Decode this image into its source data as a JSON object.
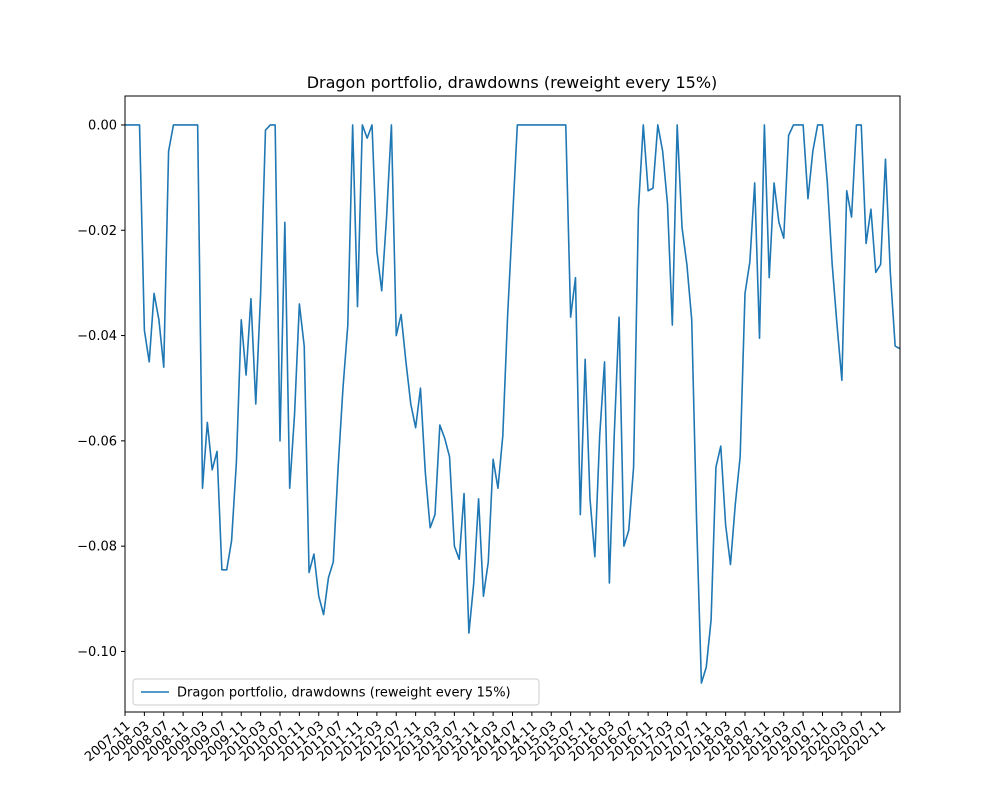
{
  "chart_data": {
    "type": "line",
    "title": "Dragon portfolio, drawdowns (reweight every 15%)",
    "xlabel": "",
    "ylabel": "",
    "ylim": [
      -0.1115,
      0.0055
    ],
    "y_ticks": [
      0.0,
      -0.02,
      -0.04,
      -0.06,
      -0.08,
      -0.1
    ],
    "y_tick_labels": [
      "0.00",
      "−0.02",
      "−0.04",
      "−0.06",
      "−0.08",
      "−0.10"
    ],
    "x_tick_labels": [
      "2007-11",
      "2008-03",
      "2008-07",
      "2008-11",
      "2009-03",
      "2009-07",
      "2009-11",
      "2010-03",
      "2010-07",
      "2010-11",
      "2011-03",
      "2011-07",
      "2011-11",
      "2012-03",
      "2012-07",
      "2012-11",
      "2013-03",
      "2013-07",
      "2013-11",
      "2014-03",
      "2014-07",
      "2014-11",
      "2015-03",
      "2015-07",
      "2015-11",
      "2016-03",
      "2016-07",
      "2016-11",
      "2017-03",
      "2017-07",
      "2017-11",
      "2018-03",
      "2018-07",
      "2018-11",
      "2019-03",
      "2019-07",
      "2019-11",
      "2020-03",
      "2020-07",
      "2020-11"
    ],
    "x_tick_step_months": 4,
    "grid": false,
    "legend_position": "lower-left",
    "series": [
      {
        "name": "Dragon portfolio, drawdowns (reweight every 15%)",
        "color": "#1f77b4",
        "values": [
          0,
          0,
          0,
          0,
          -0.039,
          -0.045,
          -0.032,
          -0.037,
          -0.046,
          -0.005,
          0,
          0,
          0,
          0,
          0,
          0,
          -0.069,
          -0.0565,
          -0.0655,
          -0.062,
          -0.0845,
          -0.0845,
          -0.079,
          -0.064,
          -0.037,
          -0.0475,
          -0.033,
          -0.053,
          -0.032,
          -0.001,
          0,
          0,
          -0.06,
          -0.0185,
          -0.069,
          -0.055,
          -0.034,
          -0.042,
          -0.085,
          -0.0815,
          -0.0895,
          -0.093,
          -0.086,
          -0.083,
          -0.065,
          -0.05,
          -0.038,
          0,
          -0.0345,
          0,
          -0.0025,
          0,
          -0.024,
          -0.0315,
          -0.0175,
          0,
          -0.04,
          -0.036,
          -0.045,
          -0.053,
          -0.0575,
          -0.05,
          -0.066,
          -0.0765,
          -0.074,
          -0.057,
          -0.0595,
          -0.063,
          -0.08,
          -0.0825,
          -0.07,
          -0.0965,
          -0.087,
          -0.071,
          -0.0895,
          -0.083,
          -0.0635,
          -0.069,
          -0.059,
          -0.036,
          -0.018,
          0,
          0,
          0,
          0,
          0,
          0,
          0,
          0,
          0,
          0,
          0,
          -0.0365,
          -0.029,
          -0.074,
          -0.0445,
          -0.071,
          -0.082,
          -0.059,
          -0.045,
          -0.087,
          -0.059,
          -0.0365,
          -0.08,
          -0.077,
          -0.065,
          -0.016,
          0,
          -0.0125,
          -0.012,
          0,
          -0.005,
          -0.015,
          -0.038,
          0,
          -0.0195,
          -0.0265,
          -0.037,
          -0.075,
          -0.106,
          -0.103,
          -0.094,
          -0.065,
          -0.061,
          -0.076,
          -0.0835,
          -0.072,
          -0.063,
          -0.032,
          -0.026,
          -0.011,
          -0.0405,
          0,
          -0.029,
          -0.011,
          -0.0185,
          -0.0215,
          -0.002,
          0,
          0,
          0,
          -0.014,
          -0.005,
          0,
          0,
          -0.011,
          -0.0265,
          -0.038,
          -0.0485,
          -0.0125,
          -0.0175,
          0,
          0,
          -0.0225,
          -0.016,
          -0.028,
          -0.0265,
          -0.0065,
          -0.028,
          -0.042,
          -0.0425
        ]
      }
    ]
  }
}
